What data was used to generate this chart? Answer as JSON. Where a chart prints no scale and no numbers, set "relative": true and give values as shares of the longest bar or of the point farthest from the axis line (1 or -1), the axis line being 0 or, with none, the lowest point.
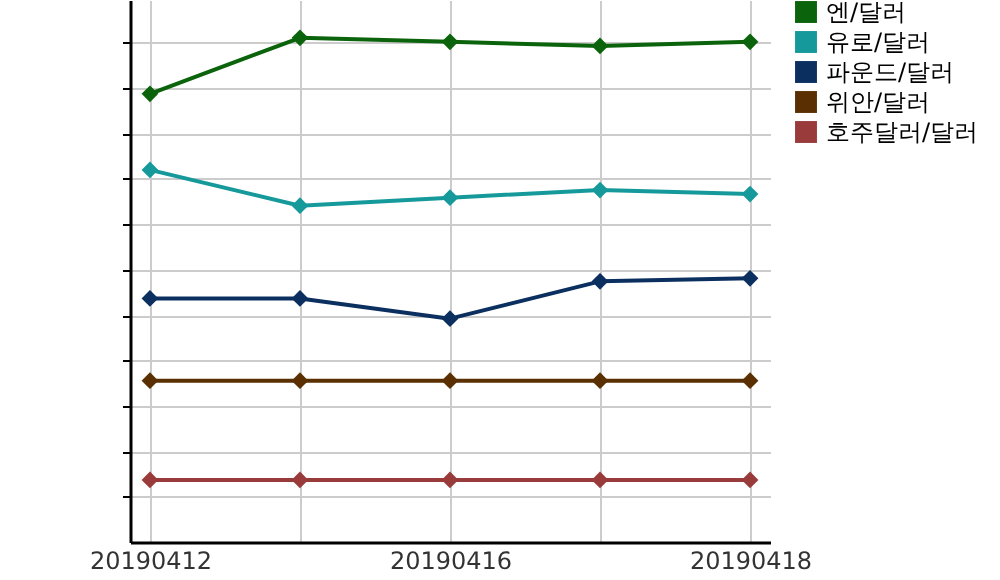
{
  "chart_data": {
    "type": "line",
    "relative": true,
    "categories": [
      "20190412",
      null,
      "20190416",
      null,
      "20190418"
    ],
    "series": [
      {
        "name": "엔/달러",
        "color": "#0b640b",
        "values": [
          0.889,
          1,
          0.992,
          0.984,
          0.992
        ]
      },
      {
        "name": "유로/달러",
        "color": "#16999b",
        "values": [
          0.738,
          0.667,
          0.683,
          0.698,
          0.69
        ]
      },
      {
        "name": "파운드/달러",
        "color": "#0b3060",
        "values": [
          0.483,
          0.483,
          0.443,
          0.517,
          0.523
        ]
      },
      {
        "name": "위안/달러",
        "color": "#5a3003",
        "values": [
          0.32,
          0.32,
          0.32,
          0.32,
          0.32
        ]
      },
      {
        "name": "호주달러/달러",
        "color": "#993b3b",
        "values": [
          0.123,
          0.123,
          0.123,
          0.123,
          0.123
        ]
      }
    ],
    "grid": true,
    "legend": "top right",
    "marker": "diamond",
    "line_style": "solid"
  }
}
